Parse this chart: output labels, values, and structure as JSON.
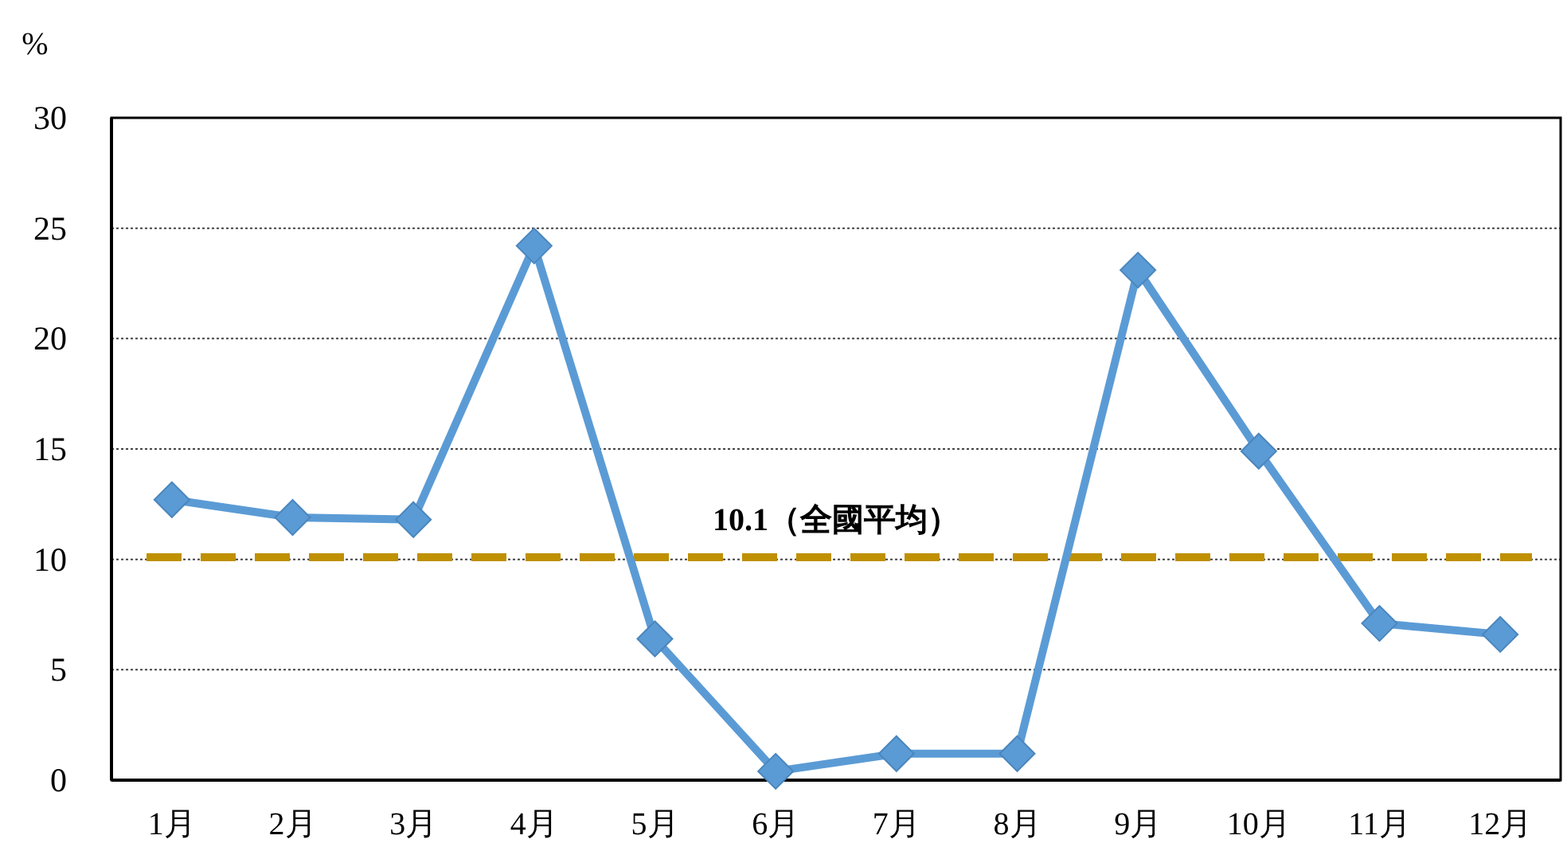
{
  "chart_data": {
    "type": "line",
    "ylabel": "%",
    "categories": [
      "1月",
      "2月",
      "3月",
      "4月",
      "5月",
      "6月",
      "7月",
      "8月",
      "9月",
      "10月",
      "11月",
      "12月"
    ],
    "series": [
      {
        "color": "#5b9bd5",
        "values": [
          12.7,
          11.9,
          11.8,
          24.2,
          6.4,
          0.4,
          1.2,
          1.2,
          23.1,
          14.9,
          7.1,
          6.6
        ]
      }
    ],
    "ylim": [
      0,
      30
    ],
    "yticks": [
      0,
      5,
      10,
      15,
      20,
      25,
      30
    ],
    "grid": "y",
    "marker": "diamond",
    "line_style": "solid",
    "ref_lines": [
      {
        "axis": "y",
        "value": 10.1,
        "label": "10.1（全國平均）",
        "color": "#bf9000",
        "line_style": "dashed"
      }
    ]
  }
}
